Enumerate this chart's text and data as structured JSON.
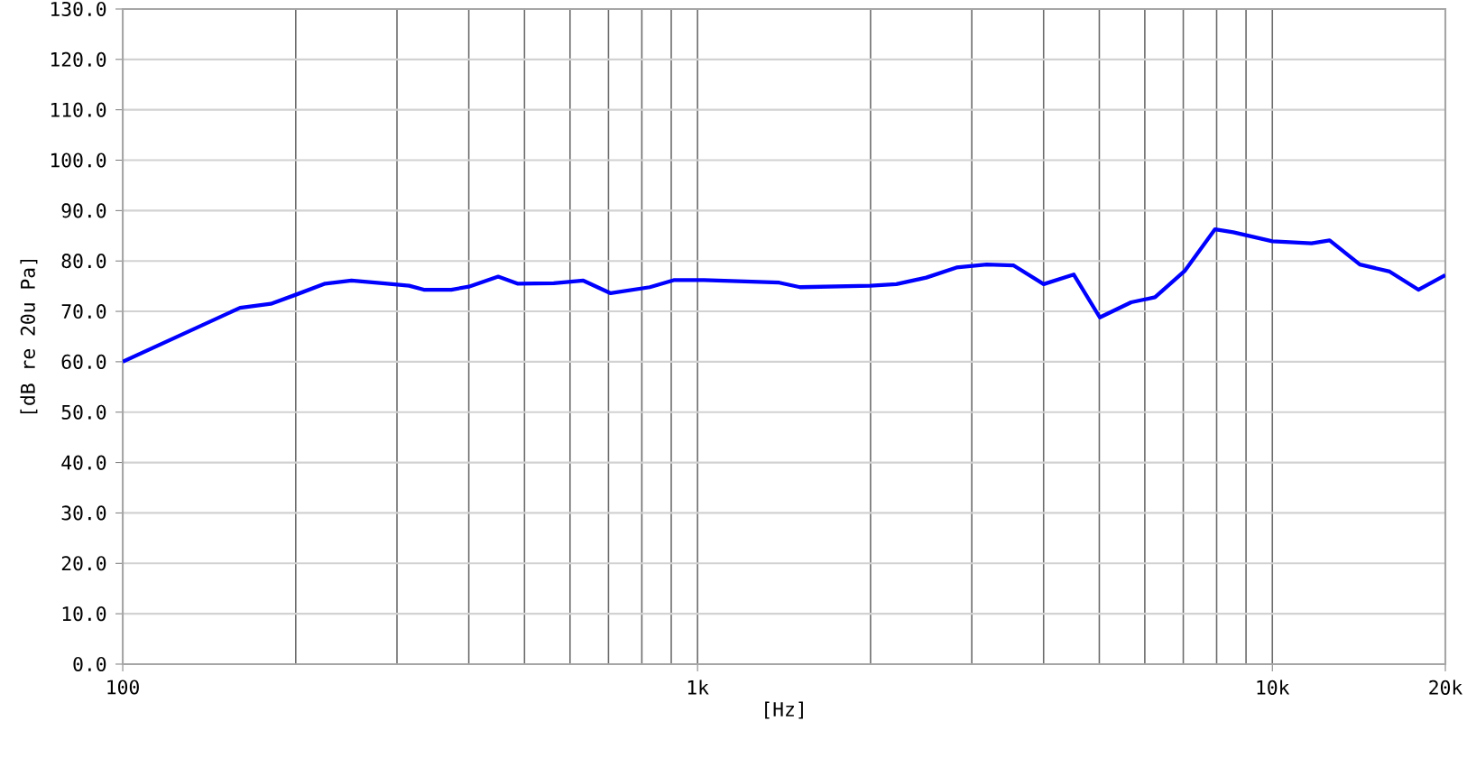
{
  "chart_data": {
    "type": "line",
    "xlabel": "[Hz]",
    "ylabel": "[dB re 20u Pa]",
    "log": "x",
    "x": [
      100,
      160,
      181,
      200,
      225,
      250,
      283,
      315,
      334,
      373,
      400,
      450,
      486,
      562,
      633,
      706,
      826,
      909,
      1026,
      1387,
      1508,
      2000,
      2218,
      2500,
      2822,
      3184,
      3549,
      4001,
      4514,
      5010,
      5680,
      6250,
      7050,
      7950,
      8550,
      10000,
      11700,
      12580,
      14200,
      16000,
      17950,
      20000
    ],
    "series": [
      {
        "color": "#0000ff",
        "values": [
          60.0,
          70.7,
          71.5,
          73.3,
          75.5,
          76.1,
          75.6,
          75.1,
          74.3,
          74.3,
          74.9,
          76.9,
          75.5,
          75.6,
          76.1,
          73.6,
          74.8,
          76.2,
          76.2,
          75.7,
          74.8,
          75.1,
          75.4,
          76.7,
          78.7,
          79.3,
          79.1,
          75.4,
          77.3,
          68.8,
          71.8,
          72.8,
          78.1,
          86.3,
          85.7,
          83.9,
          83.5,
          84.1,
          79.3,
          77.9,
          74.3,
          77.2
        ]
      }
    ],
    "xlim": [
      100,
      20000
    ],
    "ylim": [
      0,
      130
    ],
    "xticks": [
      100,
      {
        "value": 1000,
        "label": "1k"
      },
      {
        "value": 10000,
        "label": "10k"
      },
      {
        "value": 20000,
        "label": "20k"
      }
    ],
    "yticks": [
      {
        "value": 0,
        "label": "0.0"
      },
      {
        "value": 10,
        "label": "10.0"
      },
      {
        "value": 20,
        "label": "20.0"
      },
      {
        "value": 30,
        "label": "30.0"
      },
      {
        "value": 40,
        "label": "40.0"
      },
      {
        "value": 50,
        "label": "50.0"
      },
      {
        "value": 60,
        "label": "60.0"
      },
      {
        "value": 70,
        "label": "70.0"
      },
      {
        "value": 80,
        "label": "80.0"
      },
      {
        "value": 90,
        "label": "90.0"
      },
      {
        "value": 100,
        "label": "100.0"
      },
      {
        "value": 110,
        "label": "110.0"
      },
      {
        "value": 120,
        "label": "120.0"
      },
      {
        "value": 130,
        "label": "130.0"
      }
    ],
    "grid": true,
    "marker": "none",
    "line_style": "solid"
  }
}
